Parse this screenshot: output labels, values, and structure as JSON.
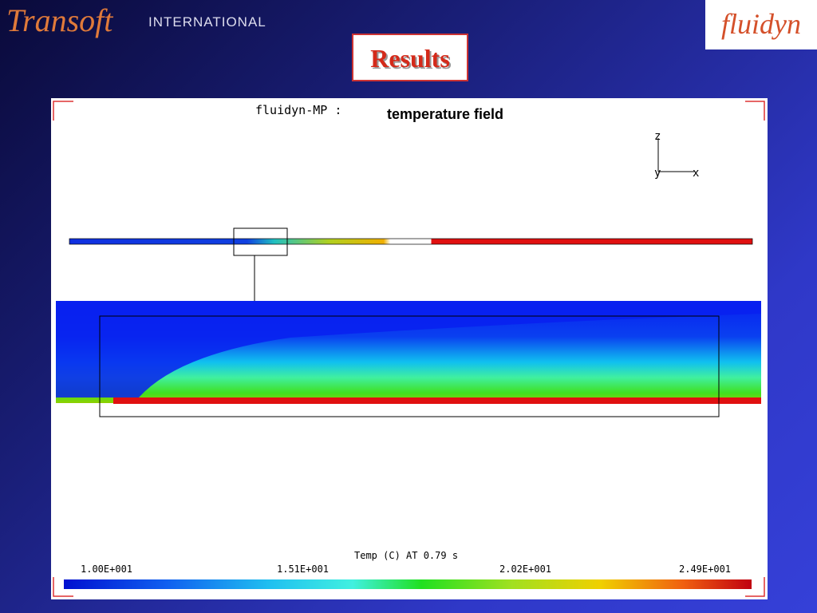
{
  "header": {
    "brand": "Transoft",
    "brand_sub": "INTERNATIONAL",
    "logo": "fluidyn"
  },
  "slide": {
    "title": "Results"
  },
  "figure": {
    "software": "fluidyn-MP :",
    "caption": "temperature field",
    "axes": {
      "z": "z",
      "y": "y",
      "x": "x"
    },
    "legend": {
      "title": "Temp (C) AT 0.79 s",
      "labels": [
        "1.00E+001",
        "1.51E+001",
        "2.02E+001",
        "2.49E+001"
      ]
    }
  }
}
